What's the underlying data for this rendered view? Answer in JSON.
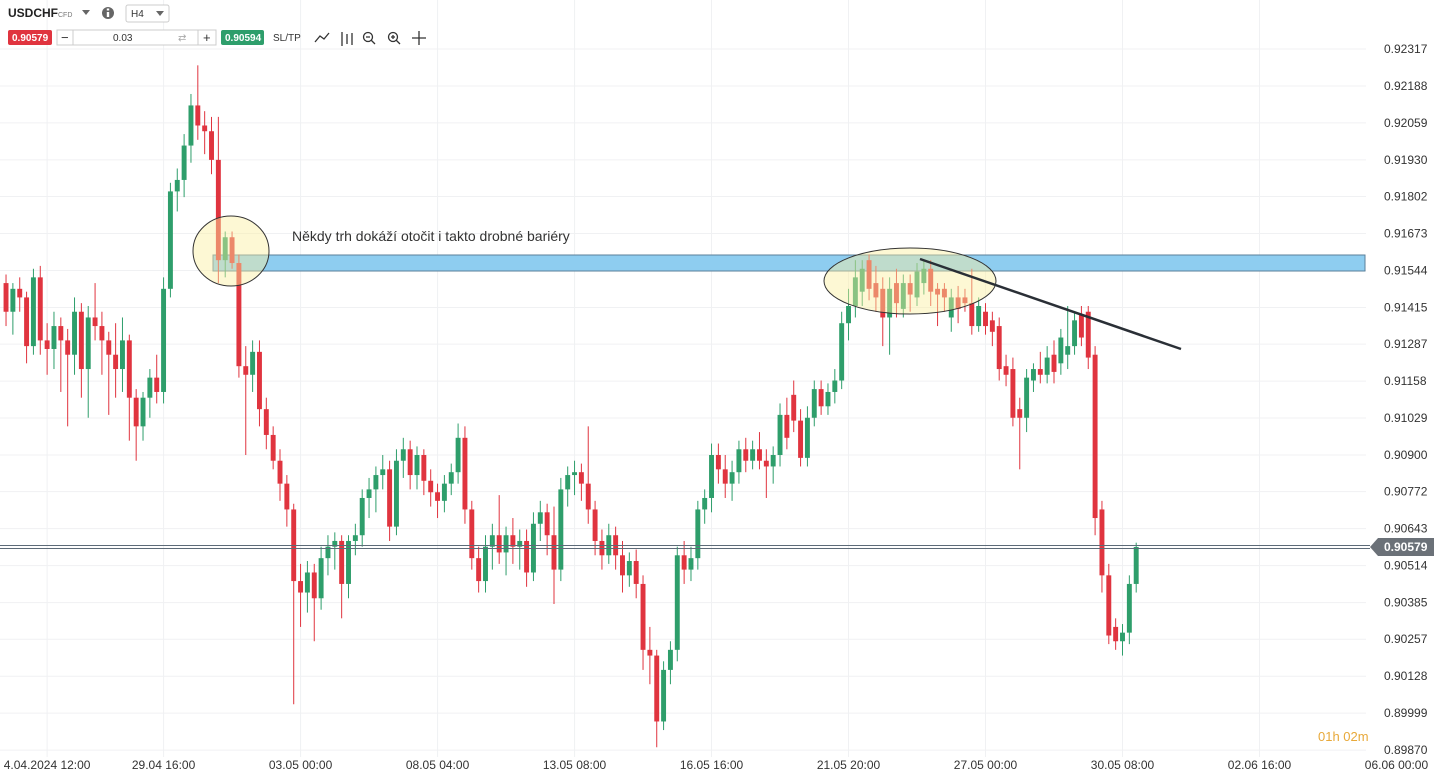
{
  "toolbar": {
    "symbol": "USDCHF",
    "market": "CFD",
    "timeframe": "H4",
    "sell": "0.90579",
    "lot": "0.03",
    "buy": "0.90594",
    "sltp": "SL/TP"
  },
  "chart_data": {
    "type": "candlestick",
    "annotation": "Někdy trh dokáží otočit i takto drobné bariéry",
    "timer": "01h 02m",
    "last_price": 0.90579,
    "colors": {
      "up": "#2e9e6b",
      "down": "#e0343f"
    },
    "grid": true,
    "xlim": [
      -0.88,
      198.55
    ],
    "ylim": [
      0.89846,
      0.92488
    ],
    "yticks": [
      0.92317,
      0.92188,
      0.92059,
      {
        "value": 0.9193,
        "label": "0.91930"
      },
      0.91802,
      0.91673,
      0.91544,
      0.91415,
      0.91287,
      0.91158,
      0.91029,
      {
        "value": 0.909,
        "label": "0.90900"
      },
      0.90772,
      0.90643,
      0.90514,
      0.90385,
      0.90257,
      0.90128,
      0.89999,
      {
        "value": 0.8987,
        "label": "0.89870"
      }
    ],
    "xticks": [
      {
        "value": 6,
        "label": "4.04.2024 12:00"
      },
      {
        "value": 23,
        "label": "29.04 16:00"
      },
      {
        "value": 43,
        "label": "03.05 00:00"
      },
      {
        "value": 63,
        "label": "08.05 04:00"
      },
      {
        "value": 83,
        "label": "13.05 08:00"
      },
      {
        "value": 103,
        "label": "16.05 16:00"
      },
      {
        "value": 123,
        "label": "21.05 20:00"
      },
      {
        "value": 143,
        "label": "27.05 00:00"
      },
      {
        "value": 163,
        "label": "30.05 08:00"
      },
      {
        "value": 183,
        "label": "02.06 16:00"
      },
      {
        "value": 203,
        "label": "06.06 00:00"
      }
    ],
    "candles": [
      [
        0.915,
        0.9153,
        0.9135,
        0.914
      ],
      [
        0.914,
        0.915,
        0.9132,
        0.9148
      ],
      [
        0.9148,
        0.9152,
        0.914,
        0.9145
      ],
      [
        0.9145,
        0.9147,
        0.9122,
        0.9128
      ],
      [
        0.9128,
        0.9155,
        0.9125,
        0.9152
      ],
      [
        0.9152,
        0.9156,
        0.9125,
        0.913
      ],
      [
        0.913,
        0.9136,
        0.9118,
        0.9127
      ],
      [
        0.9127,
        0.914,
        0.912,
        0.9135
      ],
      [
        0.9135,
        0.9138,
        0.9112,
        0.913
      ],
      [
        0.913,
        0.9134,
        0.91,
        0.9125
      ],
      [
        0.9125,
        0.9145,
        0.9118,
        0.914
      ],
      [
        0.914,
        0.9143,
        0.911,
        0.912
      ],
      [
        0.912,
        0.9142,
        0.9103,
        0.9138
      ],
      [
        0.9138,
        0.915,
        0.913,
        0.9135
      ],
      [
        0.9135,
        0.914,
        0.9118,
        0.913
      ],
      [
        0.913,
        0.9133,
        0.9104,
        0.9125
      ],
      [
        0.9125,
        0.9136,
        0.911,
        0.912
      ],
      [
        0.912,
        0.9138,
        0.9112,
        0.913
      ],
      [
        0.913,
        0.9132,
        0.9095,
        0.911
      ],
      [
        0.911,
        0.9113,
        0.9088,
        0.91
      ],
      [
        0.91,
        0.9112,
        0.9095,
        0.911
      ],
      [
        0.911,
        0.912,
        0.9103,
        0.9117
      ],
      [
        0.9117,
        0.9125,
        0.9108,
        0.9112
      ],
      [
        0.9112,
        0.9152,
        0.9108,
        0.9148
      ],
      [
        0.9148,
        0.9185,
        0.9145,
        0.9182
      ],
      [
        0.9182,
        0.919,
        0.9175,
        0.9186
      ],
      [
        0.9186,
        0.9202,
        0.918,
        0.9198
      ],
      [
        0.9198,
        0.9216,
        0.9192,
        0.9212
      ],
      [
        0.9212,
        0.9226,
        0.92,
        0.9205
      ],
      [
        0.9205,
        0.921,
        0.9195,
        0.9203
      ],
      [
        0.9203,
        0.9208,
        0.9188,
        0.9193
      ],
      [
        0.9193,
        0.9208,
        0.915,
        0.9158
      ],
      [
        0.9158,
        0.9168,
        0.9152,
        0.9166
      ],
      [
        0.9166,
        0.9168,
        0.9155,
        0.9157
      ],
      [
        0.9157,
        0.916,
        0.9117,
        0.9121
      ],
      [
        0.9121,
        0.9128,
        0.909,
        0.9118
      ],
      [
        0.9118,
        0.913,
        0.9112,
        0.9126
      ],
      [
        0.9126,
        0.913,
        0.91,
        0.9106
      ],
      [
        0.9106,
        0.911,
        0.9092,
        0.9097
      ],
      [
        0.9097,
        0.91,
        0.9085,
        0.9088
      ],
      [
        0.9088,
        0.9092,
        0.9074,
        0.908
      ],
      [
        0.908,
        0.9083,
        0.9065,
        0.9071
      ],
      [
        0.9071,
        0.9073,
        0.9003,
        0.9046
      ],
      [
        0.9046,
        0.9052,
        0.903,
        0.9042
      ],
      [
        0.9042,
        0.9053,
        0.9035,
        0.9049
      ],
      [
        0.9049,
        0.9052,
        0.9025,
        0.904
      ],
      [
        0.904,
        0.9058,
        0.9036,
        0.9054
      ],
      [
        0.9054,
        0.9062,
        0.9048,
        0.9058
      ],
      [
        0.9058,
        0.9063,
        0.905,
        0.906
      ],
      [
        0.906,
        0.9062,
        0.9033,
        0.9045
      ],
      [
        0.9045,
        0.9062,
        0.904,
        0.906
      ],
      [
        0.906,
        0.9066,
        0.9055,
        0.9062
      ],
      [
        0.9062,
        0.9078,
        0.9058,
        0.9075
      ],
      [
        0.9075,
        0.9082,
        0.9068,
        0.9078
      ],
      [
        0.9078,
        0.9086,
        0.907,
        0.9083
      ],
      [
        0.9083,
        0.909,
        0.9078,
        0.9085
      ],
      [
        0.9085,
        0.9088,
        0.906,
        0.9065
      ],
      [
        0.9065,
        0.9092,
        0.9062,
        0.9088
      ],
      [
        0.9088,
        0.9096,
        0.9082,
        0.9092
      ],
      [
        0.9092,
        0.9095,
        0.9078,
        0.9083
      ],
      [
        0.9083,
        0.9093,
        0.9078,
        0.909
      ],
      [
        0.909,
        0.9092,
        0.9076,
        0.9081
      ],
      [
        0.9081,
        0.9085,
        0.9072,
        0.9077
      ],
      [
        0.9077,
        0.908,
        0.9068,
        0.9074
      ],
      [
        0.9074,
        0.9083,
        0.907,
        0.908
      ],
      [
        0.908,
        0.9087,
        0.9076,
        0.9084
      ],
      [
        0.9084,
        0.9101,
        0.908,
        0.9096
      ],
      [
        0.9096,
        0.91,
        0.9066,
        0.9071
      ],
      [
        0.9071,
        0.9074,
        0.905,
        0.9054
      ],
      [
        0.9054,
        0.9058,
        0.9042,
        0.9046
      ],
      [
        0.9046,
        0.9062,
        0.9042,
        0.9058
      ],
      [
        0.9058,
        0.9066,
        0.905,
        0.9062
      ],
      [
        0.9062,
        0.9076,
        0.9052,
        0.9056
      ],
      [
        0.9056,
        0.9065,
        0.9048,
        0.9062
      ],
      [
        0.9062,
        0.9068,
        0.9052,
        0.9058
      ],
      [
        0.9058,
        0.9064,
        0.905,
        0.906
      ],
      [
        0.906,
        0.9064,
        0.9044,
        0.9049
      ],
      [
        0.9049,
        0.907,
        0.9046,
        0.9066
      ],
      [
        0.9066,
        0.9074,
        0.906,
        0.907
      ],
      [
        0.907,
        0.9073,
        0.9055,
        0.9062
      ],
      [
        0.9062,
        0.9072,
        0.9038,
        0.905
      ],
      [
        0.905,
        0.9082,
        0.9046,
        0.9078
      ],
      [
        0.9078,
        0.9086,
        0.9072,
        0.9083
      ],
      [
        0.9083,
        0.9088,
        0.9076,
        0.9084
      ],
      [
        0.9084,
        0.9087,
        0.9074,
        0.908
      ],
      [
        0.908,
        0.91,
        0.9066,
        0.9071
      ],
      [
        0.9071,
        0.9074,
        0.9055,
        0.906
      ],
      [
        0.906,
        0.9064,
        0.905,
        0.9055
      ],
      [
        0.9055,
        0.9066,
        0.9052,
        0.9062
      ],
      [
        0.9062,
        0.9065,
        0.905,
        0.9055
      ],
      [
        0.9055,
        0.906,
        0.9042,
        0.9048
      ],
      [
        0.9048,
        0.9056,
        0.9044,
        0.9053
      ],
      [
        0.9053,
        0.9057,
        0.904,
        0.9045
      ],
      [
        0.9045,
        0.9048,
        0.9015,
        0.9022
      ],
      [
        0.9022,
        0.903,
        0.901,
        0.902
      ],
      [
        0.902,
        0.9022,
        0.8988,
        0.8997
      ],
      [
        0.8997,
        0.9018,
        0.8994,
        0.9015
      ],
      [
        0.9015,
        0.9025,
        0.901,
        0.9022
      ],
      [
        0.9022,
        0.9058,
        0.9018,
        0.9055
      ],
      [
        0.9055,
        0.906,
        0.9045,
        0.905
      ],
      [
        0.905,
        0.9058,
        0.9046,
        0.9054
      ],
      [
        0.9054,
        0.9074,
        0.905,
        0.9071
      ],
      [
        0.9071,
        0.9078,
        0.9066,
        0.9075
      ],
      [
        0.9075,
        0.9094,
        0.907,
        0.909
      ],
      [
        0.909,
        0.9094,
        0.908,
        0.9085
      ],
      [
        0.9085,
        0.909,
        0.9075,
        0.908
      ],
      [
        0.908,
        0.9088,
        0.9074,
        0.9084
      ],
      [
        0.9084,
        0.9095,
        0.908,
        0.9092
      ],
      [
        0.9092,
        0.9096,
        0.9084,
        0.9088
      ],
      [
        0.9088,
        0.9095,
        0.9085,
        0.9092
      ],
      [
        0.9092,
        0.9098,
        0.9085,
        0.9088
      ],
      [
        0.9088,
        0.9092,
        0.9075,
        0.9086
      ],
      [
        0.9086,
        0.9093,
        0.908,
        0.909
      ],
      [
        0.909,
        0.9108,
        0.9086,
        0.9104
      ],
      [
        0.9104,
        0.911,
        0.9092,
        0.9096
      ],
      [
        0.9111,
        0.9116,
        0.9098,
        0.9102
      ],
      [
        0.9102,
        0.9106,
        0.9086,
        0.9089
      ],
      [
        0.9089,
        0.9107,
        0.9086,
        0.9103
      ],
      [
        0.9103,
        0.9116,
        0.91,
        0.9113
      ],
      [
        0.9113,
        0.9116,
        0.9104,
        0.9107
      ],
      [
        0.9107,
        0.9115,
        0.9104,
        0.9112
      ],
      [
        0.9112,
        0.912,
        0.9108,
        0.9116
      ],
      [
        0.9116,
        0.914,
        0.9113,
        0.9136
      ],
      [
        0.9136,
        0.9148,
        0.913,
        0.9142
      ],
      [
        0.9142,
        0.9158,
        0.9138,
        0.9152
      ],
      [
        0.9147,
        0.9158,
        0.9142,
        0.9155
      ],
      [
        0.9158,
        0.916,
        0.9144,
        0.9148
      ],
      [
        0.915,
        0.9156,
        0.914,
        0.9145
      ],
      [
        0.9148,
        0.9152,
        0.9128,
        0.9138
      ],
      [
        0.9138,
        0.9152,
        0.9125,
        0.9148
      ],
      [
        0.915,
        0.9155,
        0.9138,
        0.9143
      ],
      [
        0.9141,
        0.9153,
        0.9138,
        0.915
      ],
      [
        0.915,
        0.9153,
        0.914,
        0.9146
      ],
      [
        0.9145,
        0.9157,
        0.9142,
        0.9154
      ],
      [
        0.915,
        0.9158,
        0.9146,
        0.9155
      ],
      [
        0.9155,
        0.9158,
        0.9142,
        0.9147
      ],
      [
        0.9148,
        0.915,
        0.9135,
        0.9146
      ],
      [
        0.9148,
        0.915,
        0.914,
        0.9145
      ],
      [
        0.9138,
        0.9148,
        0.9133,
        0.9145
      ],
      [
        0.9145,
        0.9149,
        0.9136,
        0.9141
      ],
      [
        0.9145,
        0.9148,
        0.914,
        0.9143
      ],
      [
        0.9143,
        0.9155,
        0.9132,
        0.9135
      ],
      [
        0.9135,
        0.9145,
        0.9133,
        0.9142
      ],
      [
        0.914,
        0.9143,
        0.9132,
        0.9135
      ],
      [
        0.9137,
        0.914,
        0.9128,
        0.9133
      ],
      [
        0.9135,
        0.9138,
        0.9116,
        0.912
      ],
      [
        0.9121,
        0.9125,
        0.9114,
        0.9118
      ],
      [
        0.912,
        0.9124,
        0.91,
        0.9103
      ],
      [
        0.9106,
        0.911,
        0.9085,
        0.9103
      ],
      [
        0.9103,
        0.912,
        0.9098,
        0.9117
      ],
      [
        0.9116,
        0.9122,
        0.9112,
        0.912
      ],
      [
        0.912,
        0.9126,
        0.9115,
        0.9118
      ],
      [
        0.9118,
        0.9128,
        0.9115,
        0.9124
      ],
      [
        0.9125,
        0.913,
        0.9115,
        0.9119
      ],
      [
        0.9122,
        0.9134,
        0.9118,
        0.9131
      ],
      [
        0.9125,
        0.9142,
        0.912,
        0.9128
      ],
      [
        0.9128,
        0.914,
        0.9125,
        0.9137
      ],
      [
        0.9139,
        0.9142,
        0.9128,
        0.9131
      ],
      [
        0.914,
        0.9142,
        0.912,
        0.9124
      ],
      [
        0.9125,
        0.9128,
        0.9062,
        0.9068
      ],
      [
        0.9071,
        0.9074,
        0.9042,
        0.9048
      ],
      [
        0.9048,
        0.9052,
        0.9024,
        0.9027
      ],
      [
        0.903,
        0.9033,
        0.9022,
        0.9025
      ],
      [
        0.9025,
        0.9031,
        0.902,
        0.9028
      ],
      [
        0.9028,
        0.9048,
        0.9024,
        0.9045
      ],
      [
        0.9045,
        0.90594,
        0.9042,
        0.90579
      ]
    ]
  }
}
